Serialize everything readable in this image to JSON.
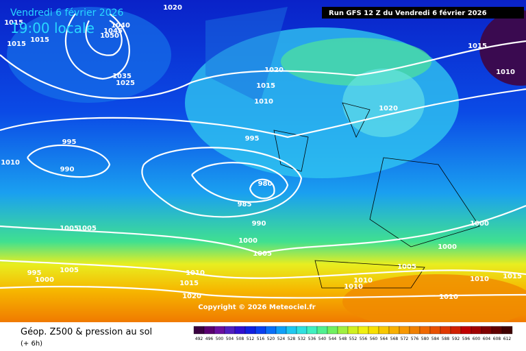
{
  "header": {
    "date": "Vendredi 6 février 2026",
    "time": "19:00 locale",
    "run": "Run GFS 12 Z du Vendredi 6 février 2026"
  },
  "map": {
    "isobar_labels": [
      "1020",
      "1015",
      "1040",
      "1045",
      "1050",
      "1015",
      "1015",
      "1035",
      "1025",
      "1020",
      "1015",
      "1010",
      "1015",
      "1010",
      "1020",
      "995",
      "995",
      "990",
      "1010",
      "980",
      "985",
      "990",
      "1000",
      "1005",
      "1005",
      "1005",
      "1000",
      "1000",
      "1005",
      "1005",
      "1010",
      "1015",
      "1020",
      "1010",
      "1010",
      "1010",
      "1015",
      "1010",
      "1000",
      "995"
    ],
    "copyright": "Copyright © 2026 Meteociel.fr"
  },
  "legend": {
    "title": "Géop. Z500 & pression au sol",
    "subtitle": "(+ 6h)",
    "scale": [
      492,
      496,
      500,
      504,
      508,
      512,
      516,
      520,
      524,
      528,
      532,
      536,
      540,
      544,
      548,
      552,
      556,
      560,
      564,
      568,
      572,
      576,
      580,
      584,
      588,
      592,
      596,
      600,
      604,
      608,
      612
    ]
  }
}
